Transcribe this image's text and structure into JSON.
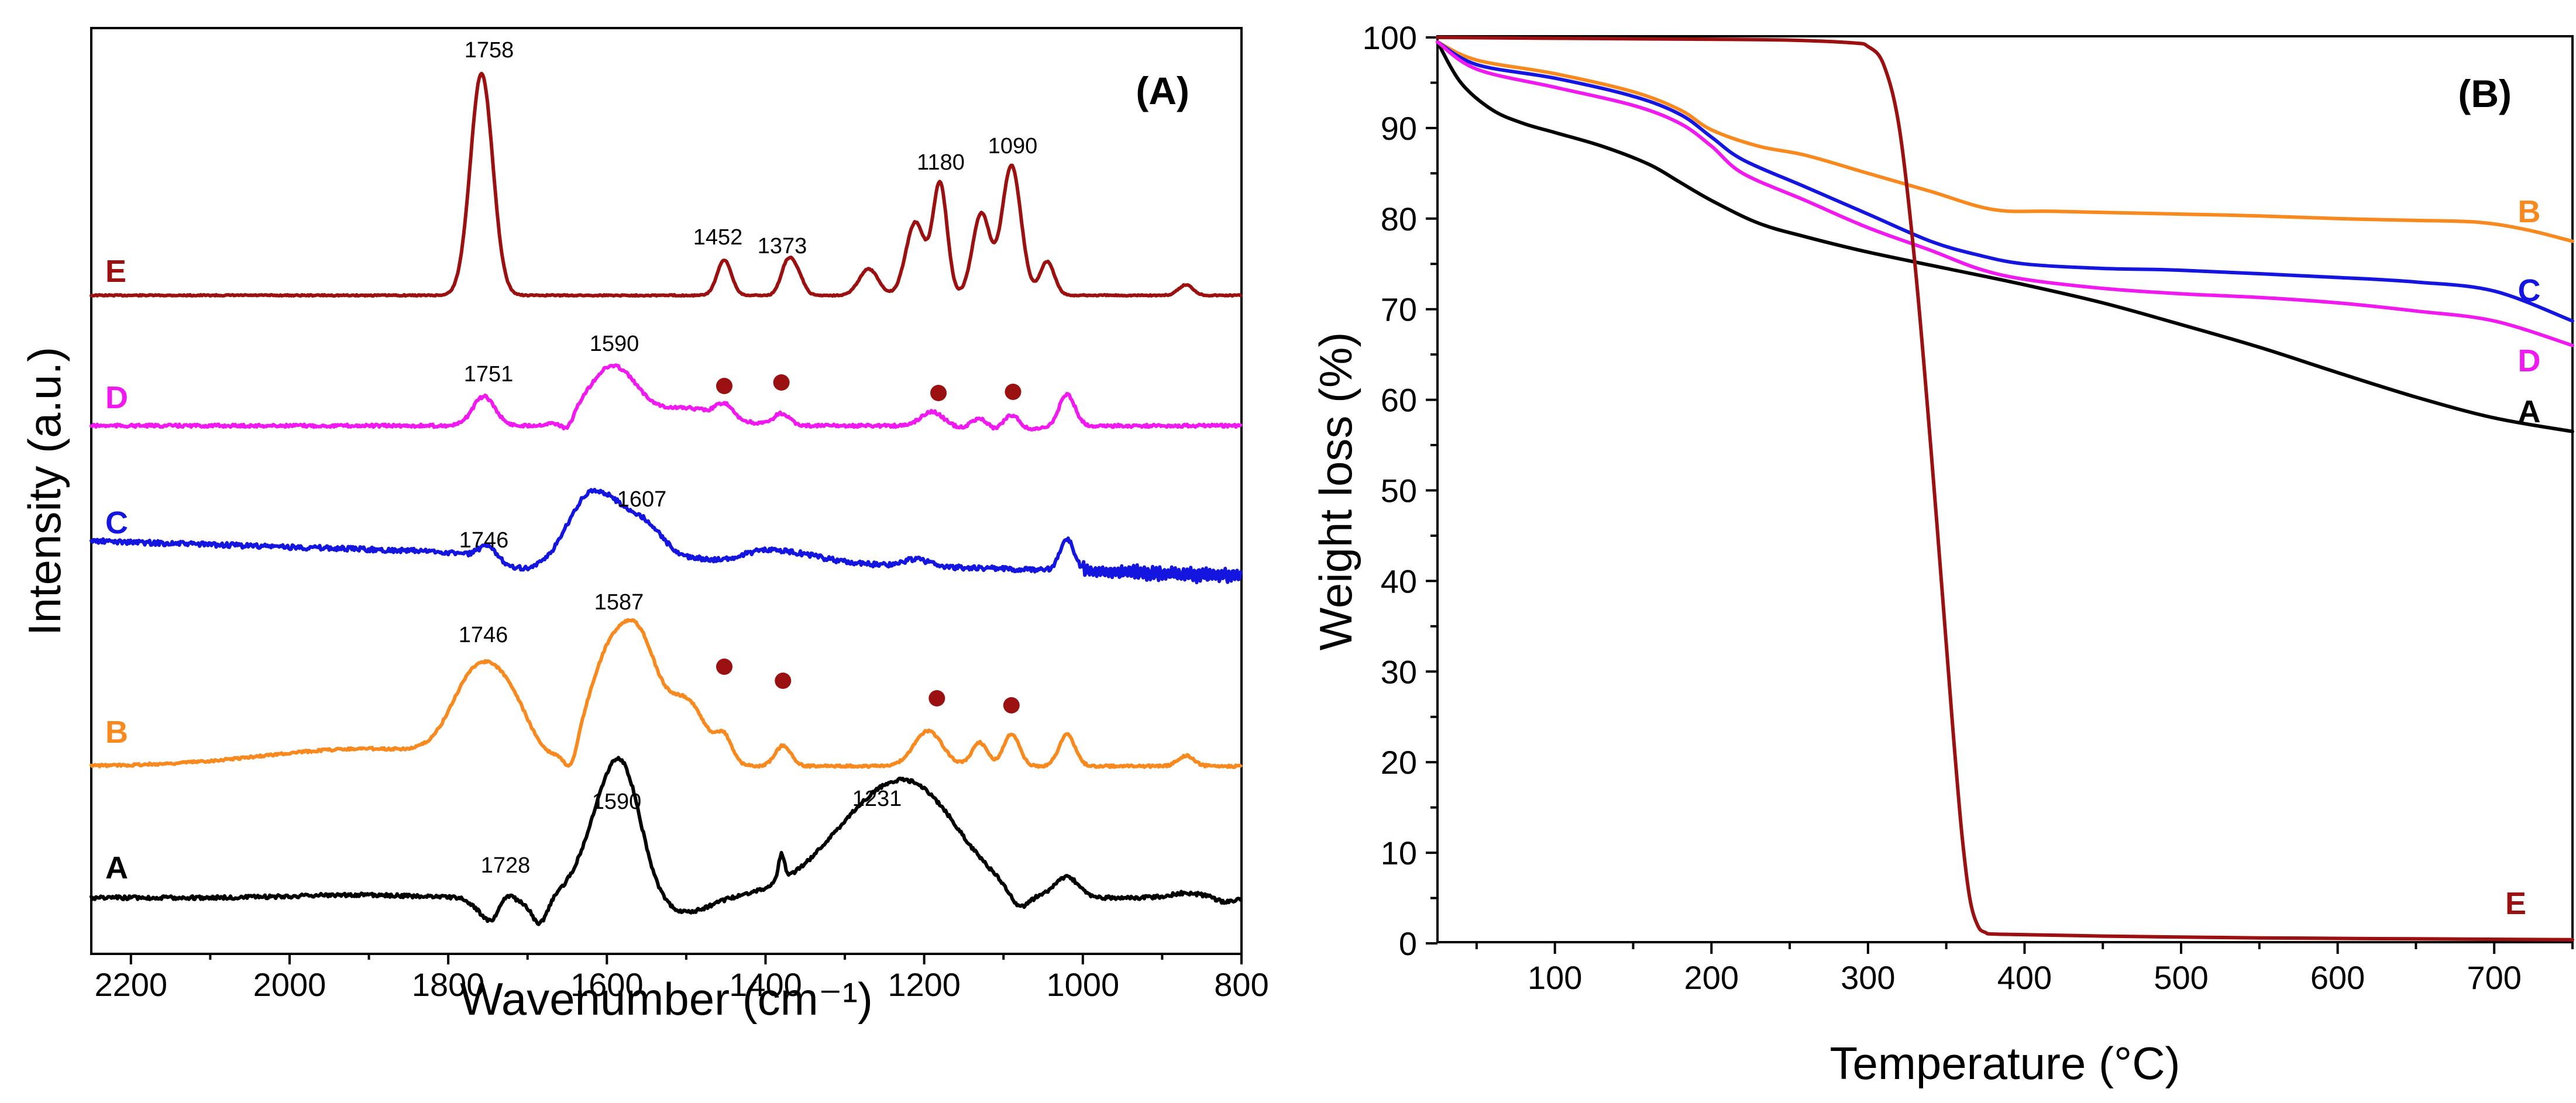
{
  "chart_data": [
    {
      "type": "line",
      "panel_label": "(A)",
      "xlabel": "Wavenumber (cm⁻¹)",
      "ylabel": "Intensity (a.u.)",
      "xlim": [
        2250,
        800
      ],
      "x_ticks": [
        "2200",
        "2000",
        "1800",
        "1600",
        "1400",
        "1200",
        "1000",
        "800"
      ],
      "series": [
        {
          "name": "E",
          "color": "#9B1111",
          "peak_labels": [
            {
              "x": 1758,
              "text": "1758"
            },
            {
              "x": 1452,
              "text": "1452"
            },
            {
              "x": 1373,
              "text": "1373"
            },
            {
              "x": 1180,
              "text": "1180"
            },
            {
              "x": 1090,
              "text": "1090"
            }
          ]
        },
        {
          "name": "D",
          "color": "#F01AF0",
          "peak_labels": [
            {
              "x": 1751,
              "text": "1751"
            },
            {
              "x": 1590,
              "text": "1590"
            }
          ],
          "markers": [
            1452,
            1380,
            1182,
            1088
          ]
        },
        {
          "name": "C",
          "color": "#1515E0",
          "peak_labels": [
            {
              "x": 1746,
              "text": "1746"
            },
            {
              "x": 1607,
              "text": "1607"
            }
          ]
        },
        {
          "name": "B",
          "color": "#F7891F",
          "peak_labels": [
            {
              "x": 1746,
              "text": "1746"
            },
            {
              "x": 1587,
              "text": "1587"
            }
          ],
          "markers": [
            1452,
            1378,
            1184,
            1090
          ]
        },
        {
          "name": "A",
          "color": "#000000",
          "peak_labels": [
            {
              "x": 1728,
              "text": "1728"
            },
            {
              "x": 1590,
              "text": "1590"
            },
            {
              "x": 1231,
              "text": "1231"
            }
          ]
        }
      ]
    },
    {
      "type": "line",
      "panel_label": "(B)",
      "xlabel": "Temperature (°C)",
      "ylabel": "Weight loss (%)",
      "xlim": [
        25,
        750
      ],
      "ylim": [
        0,
        100
      ],
      "x_ticks": [
        "100",
        "200",
        "300",
        "400",
        "500",
        "600",
        "700"
      ],
      "y_ticks": [
        "0",
        "10",
        "20",
        "30",
        "40",
        "50",
        "60",
        "70",
        "80",
        "90",
        "100"
      ],
      "series": [
        {
          "name": "A",
          "color": "#000000",
          "x": [
            25,
            40,
            60,
            80,
            100,
            130,
            160,
            180,
            200,
            230,
            260,
            300,
            350,
            400,
            450,
            500,
            550,
            600,
            650,
            700,
            750
          ],
          "y": [
            99.5,
            95,
            92,
            90.5,
            89.5,
            88,
            86,
            84,
            82,
            79.5,
            78,
            76.3,
            74.5,
            72.7,
            70.7,
            68.3,
            65.8,
            63,
            60.3,
            58,
            56.5
          ]
        },
        {
          "name": "B",
          "color": "#F7891F",
          "x": [
            25,
            50,
            100,
            150,
            180,
            200,
            230,
            260,
            300,
            340,
            380,
            420,
            500,
            550,
            600,
            650,
            690,
            720,
            750
          ],
          "y": [
            99.5,
            97.5,
            96,
            94,
            92,
            89.8,
            88,
            87,
            85,
            83,
            81,
            80.8,
            80.5,
            80.3,
            80.0,
            79.8,
            79.6,
            78.8,
            77.5
          ]
        },
        {
          "name": "C",
          "color": "#1515E0",
          "x": [
            25,
            50,
            100,
            150,
            180,
            200,
            220,
            260,
            300,
            340,
            370,
            400,
            450,
            500,
            600,
            650,
            700,
            750
          ],
          "y": [
            99.5,
            97,
            95.5,
            93.5,
            91.5,
            89,
            86.5,
            83.5,
            80.5,
            77.5,
            76,
            75,
            74.5,
            74.3,
            73.5,
            73,
            72,
            68.7
          ]
        },
        {
          "name": "D",
          "color": "#F01AF0",
          "x": [
            25,
            50,
            100,
            150,
            180,
            200,
            220,
            260,
            300,
            340,
            370,
            400,
            450,
            500,
            550,
            600,
            650,
            700,
            750
          ],
          "y": [
            99.5,
            96.5,
            94.5,
            92.5,
            90.5,
            88,
            85,
            82,
            79,
            76.5,
            74.5,
            73.3,
            72.3,
            71.7,
            71.3,
            70.7,
            69.8,
            68.7,
            66
          ]
        },
        {
          "name": "E",
          "color": "#9B1111",
          "x": [
            25,
            100,
            200,
            250,
            290,
            300,
            310,
            320,
            330,
            340,
            350,
            355,
            360,
            365,
            370,
            375,
            385,
            450,
            550,
            650,
            750
          ],
          "y": [
            100,
            99.9,
            99.8,
            99.7,
            99.4,
            99,
            97,
            90,
            75,
            55,
            33,
            22,
            12,
            5,
            2,
            1.2,
            1,
            0.8,
            0.6,
            0.5,
            0.4
          ]
        }
      ]
    }
  ]
}
